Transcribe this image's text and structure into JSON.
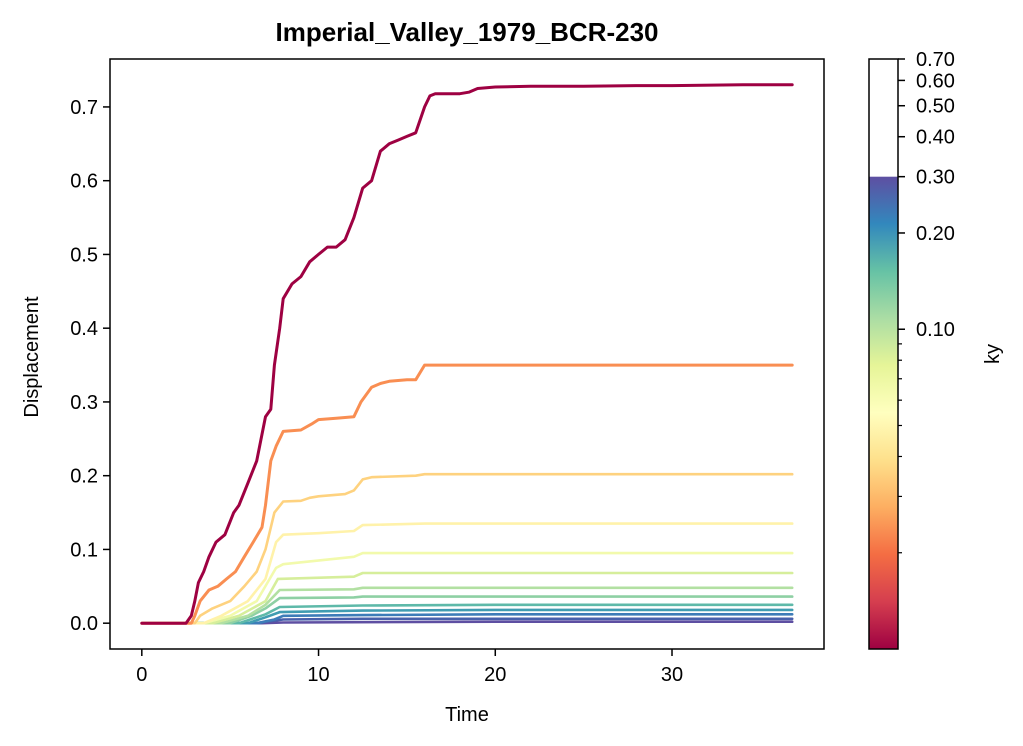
{
  "chart_data": {
    "type": "line",
    "title": "Imperial_Valley_1979_BCR-230",
    "xlabel": "Time",
    "ylabel": "Displacement",
    "xlim": [
      -1.8,
      38.6
    ],
    "ylim": [
      -0.035,
      0.765
    ],
    "xticks": [
      0,
      10,
      20,
      30
    ],
    "xtick_labels": [
      "0",
      "10",
      "20",
      "30"
    ],
    "yticks": [
      0.0,
      0.1,
      0.2,
      0.3,
      0.4,
      0.5,
      0.6,
      0.7
    ],
    "ytick_labels": [
      "0.0",
      "0.1",
      "0.2",
      "0.3",
      "0.4",
      "0.5",
      "0.6",
      "0.7"
    ],
    "grid": false,
    "legend": "none",
    "colormap": "Spectral",
    "colorbar": {
      "label": "ky",
      "scale": "log",
      "range": [
        0.01,
        0.7
      ],
      "filled_max": 0.3,
      "tick_values": [
        0.1,
        0.2,
        0.3,
        0.4,
        0.5,
        0.6,
        0.7
      ],
      "tick_labels": [
        "0.10",
        "0.20",
        "0.30",
        "0.40",
        "0.50",
        "0.60",
        "0.70"
      ],
      "minor_tick_values": [
        0.02,
        0.03,
        0.04,
        0.05,
        0.06,
        0.07,
        0.08,
        0.09
      ]
    },
    "series": [
      {
        "ky": 0.01,
        "color": "#9e0142",
        "x": [
          0,
          2.5,
          2.8,
          3.0,
          3.2,
          3.5,
          3.8,
          4.2,
          4.7,
          5.2,
          5.5,
          6.0,
          6.5,
          7.0,
          7.3,
          7.5,
          7.8,
          8.0,
          8.5,
          9.0,
          9.5,
          10.0,
          10.5,
          11.0,
          11.5,
          12.0,
          12.5,
          13.0,
          13.5,
          14.0,
          14.5,
          15.0,
          15.5,
          16.0,
          16.3,
          16.6,
          17.0,
          18.0,
          18.5,
          19.0,
          19.5,
          20.0,
          22.0,
          25.0,
          28.0,
          30.0,
          34.0,
          36.8
        ],
        "y": [
          0.0,
          0.0,
          0.01,
          0.03,
          0.055,
          0.07,
          0.09,
          0.11,
          0.12,
          0.15,
          0.16,
          0.19,
          0.22,
          0.28,
          0.29,
          0.35,
          0.4,
          0.44,
          0.46,
          0.47,
          0.49,
          0.5,
          0.51,
          0.51,
          0.52,
          0.55,
          0.59,
          0.6,
          0.64,
          0.65,
          0.655,
          0.66,
          0.665,
          0.7,
          0.715,
          0.718,
          0.718,
          0.718,
          0.72,
          0.725,
          0.726,
          0.727,
          0.728,
          0.728,
          0.729,
          0.729,
          0.73,
          0.73
        ]
      },
      {
        "ky": 0.02,
        "color": "#f98e52",
        "x": [
          0,
          2.8,
          3.0,
          3.3,
          3.8,
          4.3,
          4.8,
          5.3,
          5.8,
          6.3,
          6.8,
          7.0,
          7.3,
          7.6,
          8.0,
          9.0,
          9.6,
          10.0,
          11.0,
          12.0,
          12.4,
          13.0,
          13.5,
          14.0,
          15.0,
          15.5,
          16.0,
          17.0,
          20.0,
          25.0,
          30.0,
          36.8
        ],
        "y": [
          0.0,
          0.0,
          0.01,
          0.03,
          0.045,
          0.05,
          0.06,
          0.07,
          0.09,
          0.11,
          0.13,
          0.16,
          0.22,
          0.24,
          0.26,
          0.262,
          0.27,
          0.276,
          0.278,
          0.28,
          0.3,
          0.32,
          0.325,
          0.328,
          0.33,
          0.33,
          0.35,
          0.35,
          0.35,
          0.35,
          0.35,
          0.35
        ]
      },
      {
        "ky": 0.03,
        "color": "#fed27f",
        "x": [
          0,
          3.0,
          3.3,
          4.0,
          5.0,
          5.8,
          6.5,
          7.0,
          7.5,
          8.0,
          9.0,
          9.5,
          10.0,
          11.5,
          12.0,
          12.5,
          13.0,
          15.5,
          16.0,
          20.0,
          25.0,
          30.0,
          36.8
        ],
        "y": [
          0.0,
          0.0,
          0.01,
          0.02,
          0.03,
          0.05,
          0.07,
          0.1,
          0.15,
          0.165,
          0.166,
          0.17,
          0.172,
          0.175,
          0.18,
          0.195,
          0.198,
          0.2,
          0.202,
          0.202,
          0.202,
          0.202,
          0.202
        ]
      },
      {
        "ky": 0.04,
        "color": "#fff2aa",
        "x": [
          0,
          3.5,
          4.5,
          6.0,
          7.0,
          7.6,
          8.0,
          10.0,
          12.0,
          12.5,
          16.0,
          20.0,
          25.0,
          30.0,
          36.8
        ],
        "y": [
          0.0,
          0.0,
          0.01,
          0.03,
          0.06,
          0.11,
          0.12,
          0.122,
          0.125,
          0.133,
          0.135,
          0.135,
          0.135,
          0.135,
          0.135
        ]
      },
      {
        "ky": 0.05,
        "color": "#f2faac",
        "x": [
          0,
          3.5,
          5.0,
          6.5,
          7.6,
          8.0,
          12.0,
          12.5,
          16.0,
          20.0,
          25.0,
          30.0,
          36.8
        ],
        "y": [
          0.0,
          0.0,
          0.01,
          0.03,
          0.075,
          0.08,
          0.09,
          0.095,
          0.095,
          0.095,
          0.095,
          0.095,
          0.095
        ]
      },
      {
        "ky": 0.06,
        "color": "#d6ee9b",
        "x": [
          0,
          4.0,
          5.5,
          7.0,
          7.7,
          12.0,
          12.5,
          16.0,
          20.0,
          25.0,
          30.0,
          36.8
        ],
        "y": [
          0.0,
          0.0,
          0.01,
          0.03,
          0.06,
          0.063,
          0.068,
          0.068,
          0.068,
          0.068,
          0.068,
          0.068
        ]
      },
      {
        "ky": 0.07,
        "color": "#b2e0a2",
        "x": [
          0,
          4.5,
          6.0,
          7.0,
          7.8,
          12.0,
          12.5,
          20.0,
          25.0,
          30.0,
          36.8
        ],
        "y": [
          0.0,
          0.0,
          0.01,
          0.025,
          0.045,
          0.046,
          0.048,
          0.048,
          0.048,
          0.048,
          0.048
        ]
      },
      {
        "ky": 0.08,
        "color": "#8ed0a4",
        "x": [
          0,
          5.0,
          6.2,
          7.0,
          7.8,
          12.0,
          12.5,
          20.0,
          25.0,
          30.0,
          36.8
        ],
        "y": [
          0.0,
          0.0,
          0.01,
          0.02,
          0.034,
          0.035,
          0.036,
          0.036,
          0.036,
          0.036,
          0.036
        ]
      },
      {
        "ky": 0.1,
        "color": "#5eb9a9",
        "x": [
          0,
          5.5,
          6.5,
          7.0,
          7.8,
          12.5,
          20.0,
          25.0,
          30.0,
          36.8
        ],
        "y": [
          0.0,
          0.0,
          0.008,
          0.012,
          0.022,
          0.024,
          0.025,
          0.025,
          0.025,
          0.025
        ]
      },
      {
        "ky": 0.12,
        "color": "#409cb1",
        "x": [
          0,
          6.0,
          7.0,
          7.8,
          12.5,
          20.0,
          25.0,
          30.0,
          36.8
        ],
        "y": [
          0.0,
          0.0,
          0.008,
          0.015,
          0.017,
          0.018,
          0.018,
          0.018,
          0.018
        ]
      },
      {
        "ky": 0.15,
        "color": "#3d7cb8",
        "x": [
          0,
          6.5,
          7.5,
          8.0,
          12.5,
          20.0,
          30.0,
          36.8
        ],
        "y": [
          0.0,
          0.0,
          0.005,
          0.01,
          0.011,
          0.012,
          0.012,
          0.012
        ]
      },
      {
        "ky": 0.2,
        "color": "#4860ab",
        "x": [
          0,
          6.7,
          7.0,
          8.0,
          12.5,
          20.0,
          36.8
        ],
        "y": [
          0.0,
          0.0,
          0.002,
          0.005,
          0.006,
          0.006,
          0.006
        ]
      },
      {
        "ky": 0.3,
        "color": "#5e4fa2",
        "x": [
          0,
          6.8,
          8.0,
          20.0,
          36.8
        ],
        "y": [
          0.0,
          0.0,
          0.001,
          0.002,
          0.002
        ]
      }
    ]
  }
}
